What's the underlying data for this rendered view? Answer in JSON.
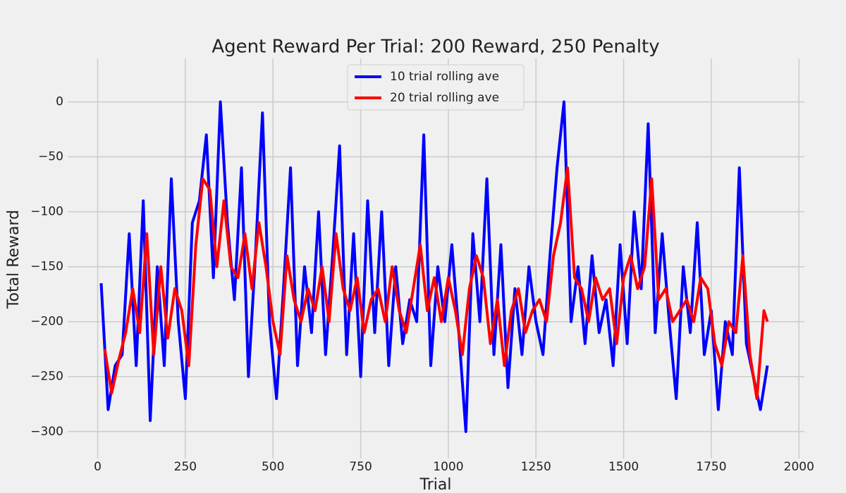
{
  "chart_data": {
    "type": "line",
    "title": "Agent Reward Per Trial: 200 Reward, 250 Penalty",
    "x_label": "Trial",
    "y_label": "Total Reward",
    "xlim": [
      -85.5,
      2015.5
    ],
    "ylim": [
      -324.5,
      39.5
    ],
    "xticks": [
      0,
      250,
      500,
      750,
      1000,
      1250,
      1500,
      1750,
      2000
    ],
    "yticks": [
      {
        "value": -300,
        "label": "−300"
      },
      {
        "value": -250,
        "label": "−250"
      },
      {
        "value": -200,
        "label": "−200"
      },
      {
        "value": -150,
        "label": "−150"
      },
      {
        "value": -100,
        "label": "−100"
      },
      {
        "value": -50,
        "label": "−50"
      },
      0
    ],
    "grid": true,
    "legend": "upper center",
    "series": [
      {
        "name": "10 trial rolling ave",
        "color": "#0000ff",
        "x": [
          10,
          30,
          50,
          70,
          90,
          110,
          130,
          150,
          170,
          190,
          210,
          230,
          250,
          270,
          290,
          310,
          330,
          350,
          370,
          390,
          410,
          430,
          450,
          470,
          490,
          510,
          530,
          550,
          570,
          590,
          610,
          630,
          650,
          670,
          690,
          710,
          730,
          750,
          770,
          790,
          810,
          830,
          850,
          870,
          890,
          910,
          930,
          950,
          970,
          990,
          1010,
          1030,
          1050,
          1070,
          1090,
          1110,
          1130,
          1150,
          1170,
          1190,
          1210,
          1230,
          1250,
          1270,
          1290,
          1310,
          1330,
          1350,
          1370,
          1390,
          1410,
          1430,
          1450,
          1470,
          1490,
          1510,
          1530,
          1550,
          1570,
          1590,
          1610,
          1630,
          1650,
          1670,
          1690,
          1710,
          1730,
          1750,
          1770,
          1790,
          1810,
          1830,
          1850,
          1870,
          1890,
          1910
        ],
        "values": [
          -165,
          -280,
          -240,
          -230,
          -120,
          -240,
          -90,
          -290,
          -150,
          -240,
          -70,
          -200,
          -270,
          -110,
          -90,
          -30,
          -160,
          0,
          -110,
          -180,
          -60,
          -250,
          -140,
          -10,
          -200,
          -270,
          -170,
          -60,
          -240,
          -150,
          -210,
          -100,
          -230,
          -140,
          -40,
          -230,
          -120,
          -250,
          -90,
          -210,
          -100,
          -240,
          -150,
          -220,
          -180,
          -200,
          -30,
          -240,
          -150,
          -200,
          -130,
          -210,
          -300,
          -120,
          -200,
          -70,
          -230,
          -130,
          -260,
          -170,
          -230,
          -150,
          -200,
          -230,
          -140,
          -60,
          0,
          -200,
          -150,
          -220,
          -140,
          -210,
          -180,
          -240,
          -130,
          -220,
          -100,
          -170,
          -20,
          -210,
          -120,
          -200,
          -270,
          -150,
          -210,
          -110,
          -230,
          -190,
          -280,
          -200,
          -230,
          -60,
          -220,
          -250,
          -280,
          -240
        ]
      },
      {
        "name": "20 trial rolling ave",
        "color": "#ff0000",
        "x": [
          20,
          40,
          60,
          80,
          100,
          120,
          140,
          160,
          180,
          200,
          220,
          240,
          260,
          280,
          300,
          320,
          340,
          360,
          380,
          400,
          420,
          440,
          460,
          480,
          500,
          520,
          540,
          560,
          580,
          600,
          620,
          640,
          660,
          680,
          700,
          720,
          740,
          760,
          780,
          800,
          820,
          840,
          860,
          880,
          900,
          920,
          940,
          960,
          980,
          1000,
          1020,
          1040,
          1060,
          1080,
          1100,
          1120,
          1140,
          1160,
          1180,
          1200,
          1220,
          1240,
          1260,
          1280,
          1300,
          1320,
          1340,
          1360,
          1380,
          1400,
          1420,
          1440,
          1460,
          1480,
          1500,
          1520,
          1540,
          1560,
          1580,
          1600,
          1620,
          1640,
          1660,
          1680,
          1700,
          1720,
          1740,
          1760,
          1780,
          1800,
          1820,
          1840,
          1860,
          1880,
          1900,
          1910
        ],
        "values": [
          -225,
          -265,
          -235,
          -210,
          -170,
          -210,
          -120,
          -230,
          -150,
          -215,
          -170,
          -190,
          -240,
          -130,
          -70,
          -80,
          -150,
          -90,
          -150,
          -160,
          -120,
          -170,
          -110,
          -150,
          -200,
          -230,
          -140,
          -180,
          -200,
          -170,
          -190,
          -150,
          -200,
          -120,
          -170,
          -190,
          -160,
          -210,
          -180,
          -170,
          -200,
          -150,
          -190,
          -210,
          -170,
          -130,
          -190,
          -160,
          -200,
          -160,
          -190,
          -230,
          -170,
          -140,
          -160,
          -220,
          -180,
          -240,
          -190,
          -170,
          -210,
          -190,
          -180,
          -200,
          -140,
          -110,
          -60,
          -160,
          -170,
          -200,
          -160,
          -180,
          -170,
          -220,
          -160,
          -140,
          -170,
          -150,
          -70,
          -180,
          -170,
          -200,
          -190,
          -180,
          -200,
          -160,
          -170,
          -220,
          -240,
          -200,
          -210,
          -140,
          -230,
          -270,
          -190,
          -200
        ]
      }
    ]
  }
}
